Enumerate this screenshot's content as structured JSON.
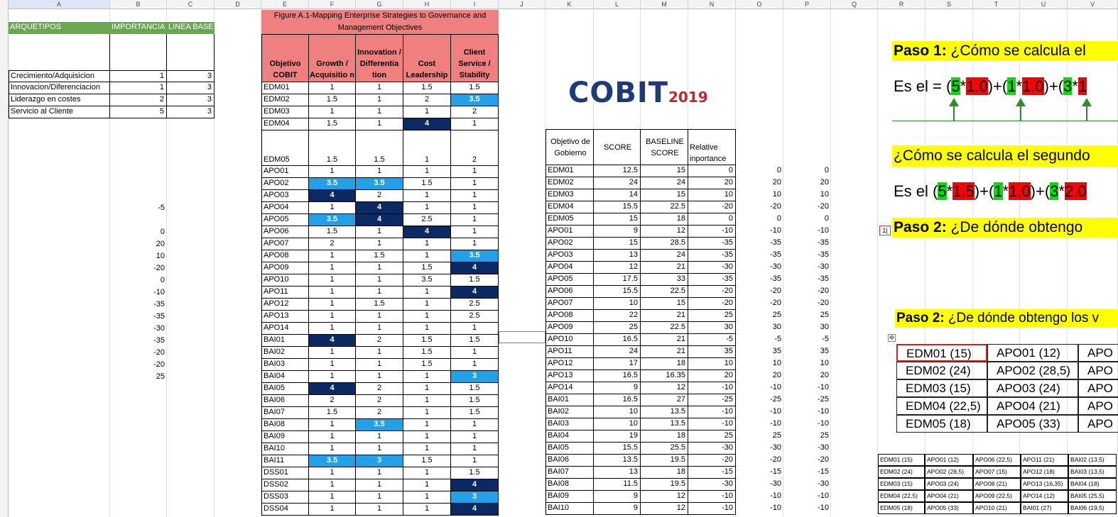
{
  "columns": [
    "A",
    "B",
    "C",
    "D",
    "E",
    "F",
    "G",
    "H",
    "I",
    "J",
    "K",
    "L",
    "M",
    "N",
    "O",
    "P",
    "Q",
    "R",
    "S",
    "T",
    "U",
    "V"
  ],
  "col1": {
    "header": "ARQUETIPOS",
    "importance_header": "IMPORTANCIA",
    "baseline_header": "LINEA BASE",
    "rows": [
      {
        "name": "Crecimiento/Adquisicion",
        "imp": "1",
        "base": "3"
      },
      {
        "name": "Innovacion/Diferenciacion",
        "imp": "1",
        "base": "3"
      },
      {
        "name": "Liderazgo en costes",
        "imp": "2",
        "base": "3"
      },
      {
        "name": "Servicio al Cliente",
        "imp": "5",
        "base": "3"
      }
    ],
    "b_column_values": [
      "-5",
      "",
      "0",
      "20",
      "10",
      "-20",
      "0",
      "-10",
      "-35",
      "-35",
      "-30",
      "-35",
      "-20",
      "-20",
      "25"
    ]
  },
  "figure": {
    "title": "Figure A.1-Mapping Enterprise Strategies to Governance and Management Objectives",
    "h_obj": "Objetivo COBIT",
    "h_growth": "Growth / Acquisitio n",
    "h_innov": "Innovation / Differentia tion",
    "h_cost": "Cost Leadership",
    "h_client": "Client Service / Stability",
    "rows": [
      [
        "EDM01",
        "1",
        "1",
        "1.5",
        "1.5"
      ],
      [
        "EDM02",
        "1.5",
        "1",
        "2",
        "3.5"
      ],
      [
        "EDM03",
        "1",
        "1",
        "1",
        "2"
      ],
      [
        "EDM04",
        "1.5",
        "1",
        "4",
        "1"
      ],
      [
        "EDM05",
        "1.5",
        "1.5",
        "1",
        "2"
      ],
      [
        "APO01",
        "1",
        "1",
        "1",
        "1"
      ],
      [
        "APO02",
        "3.5",
        "3.5",
        "1.5",
        "1"
      ],
      [
        "APO03",
        "4",
        "2",
        "1",
        "1"
      ],
      [
        "APO04",
        "1",
        "4",
        "1",
        "1"
      ],
      [
        "APO05",
        "3.5",
        "4",
        "2.5",
        "1"
      ],
      [
        "APO06",
        "1.5",
        "1",
        "4",
        "1"
      ],
      [
        "APO07",
        "2",
        "1",
        "1",
        "1"
      ],
      [
        "APO08",
        "1",
        "1.5",
        "1",
        "3.5"
      ],
      [
        "APO09",
        "1",
        "1",
        "1.5",
        "4"
      ],
      [
        "APO10",
        "1",
        "1",
        "3.5",
        "1.5"
      ],
      [
        "APO11",
        "1",
        "1",
        "1",
        "4"
      ],
      [
        "APO12",
        "1",
        "1.5",
        "1",
        "2.5"
      ],
      [
        "APO13",
        "1",
        "1",
        "1",
        "2.5"
      ],
      [
        "APO14",
        "1",
        "1",
        "1",
        "1"
      ],
      [
        "BAI01",
        "4",
        "2",
        "1.5",
        "1.5"
      ],
      [
        "BAI02",
        "1",
        "1",
        "1.5",
        "1"
      ],
      [
        "BAI03",
        "1",
        "1",
        "1.5",
        "1"
      ],
      [
        "BAI04",
        "1",
        "1",
        "1",
        "3"
      ],
      [
        "BAI05",
        "4",
        "2",
        "1",
        "1.5"
      ],
      [
        "BAI06",
        "2",
        "2",
        "1",
        "1.5"
      ],
      [
        "BAI07",
        "1.5",
        "2",
        "1",
        "1.5"
      ],
      [
        "BAI08",
        "1",
        "3.5",
        "1",
        "1"
      ],
      [
        "BAI09",
        "1",
        "1",
        "1",
        "1"
      ],
      [
        "BAI10",
        "1",
        "1",
        "1",
        "1"
      ],
      [
        "BAI11",
        "3.5",
        "3",
        "1.5",
        "1"
      ],
      [
        "DSS01",
        "1",
        "1",
        "1",
        "1.5"
      ],
      [
        "DSS02",
        "1",
        "1",
        "1",
        "4"
      ],
      [
        "DSS03",
        "1",
        "1",
        "1",
        "3"
      ],
      [
        "DSS04",
        "1",
        "1",
        "1",
        "4"
      ]
    ],
    "highlights": {
      "EDM02": {
        "4": "light"
      },
      "EDM04": {
        "3": "dark"
      },
      "APO02": {
        "1": "light",
        "2": "light"
      },
      "APO03": {
        "1": "dark"
      },
      "APO04": {
        "2": "dark"
      },
      "APO05": {
        "1": "light",
        "2": "dark"
      },
      "APO06": {
        "3": "dark"
      },
      "APO08": {
        "4": "light"
      },
      "APO09": {
        "4": "dark"
      },
      "APO11": {
        "4": "dark"
      },
      "BAI01": {
        "1": "dark"
      },
      "BAI04": {
        "4": "light"
      },
      "BAI05": {
        "1": "dark"
      },
      "BAI08": {
        "2": "light"
      },
      "BAI11": {
        "1": "light",
        "2": "light"
      },
      "DSS02": {
        "4": "dark"
      },
      "DSS03": {
        "4": "light"
      },
      "DSS04": {
        "4": "dark"
      }
    }
  },
  "logo": {
    "text": "COBIT",
    "year": "2019"
  },
  "score": {
    "h_obj": "Objetivo de Gobierno",
    "h_score": "SCORE",
    "h_base": "BASELINE SCORE",
    "h_rel": "Relative inportance",
    "rows": [
      [
        "EDM01",
        "12.5",
        "15",
        "0",
        "0",
        "0"
      ],
      [
        "EDM02",
        "24",
        "24",
        "20",
        "20",
        "20"
      ],
      [
        "EDM03",
        "14",
        "15",
        "10",
        "10",
        "10"
      ],
      [
        "EDM04",
        "15.5",
        "22.5",
        "-20",
        "-20",
        "-20"
      ],
      [
        "EDM05",
        "15",
        "18",
        "0",
        "0",
        "0"
      ],
      [
        "APO01",
        "9",
        "12",
        "-10",
        "-10",
        "-10"
      ],
      [
        "APO02",
        "15",
        "28.5",
        "-35",
        "-35",
        "-35"
      ],
      [
        "APO03",
        "13",
        "24",
        "-35",
        "-35",
        "-35"
      ],
      [
        "APO04",
        "12",
        "21",
        "-30",
        "-30",
        "-30"
      ],
      [
        "APO05",
        "17.5",
        "33",
        "-35",
        "-35",
        "-35"
      ],
      [
        "APO06",
        "15.5",
        "22.5",
        "-20",
        "-20",
        "-20"
      ],
      [
        "APO07",
        "10",
        "15",
        "-20",
        "-20",
        "-20"
      ],
      [
        "APO08",
        "22",
        "21",
        "25",
        "25",
        "25"
      ],
      [
        "APO09",
        "25",
        "22.5",
        "30",
        "30",
        "30"
      ],
      [
        "APO10",
        "16.5",
        "21",
        "-5",
        "-5",
        "-5"
      ],
      [
        "APO11",
        "24",
        "21",
        "35",
        "35",
        "35"
      ],
      [
        "APO12",
        "17",
        "18",
        "10",
        "10",
        "10"
      ],
      [
        "APO13",
        "16.5",
        "16.35",
        "20",
        "20",
        "20"
      ],
      [
        "APO14",
        "9",
        "12",
        "-10",
        "-10",
        "-10"
      ],
      [
        "BAI01",
        "16.5",
        "27",
        "-25",
        "-25",
        "-25"
      ],
      [
        "BAI02",
        "10",
        "13.5",
        "-10",
        "-10",
        "-10"
      ],
      [
        "BAI03",
        "10",
        "13.5",
        "-10",
        "-10",
        "-10"
      ],
      [
        "BAI04",
        "19",
        "18",
        "25",
        "25",
        "25"
      ],
      [
        "BAI05",
        "15.5",
        "25.5",
        "-30",
        "-30",
        "-30"
      ],
      [
        "BAI06",
        "13.5",
        "19.5",
        "-20",
        "-20",
        "-20"
      ],
      [
        "BAI07",
        "13",
        "18",
        "-15",
        "-15",
        "-15"
      ],
      [
        "BAI08",
        "11.5",
        "19.5",
        "-30",
        "-30",
        "-30"
      ],
      [
        "BAI09",
        "9",
        "12",
        "-10",
        "-10",
        "-10"
      ],
      [
        "BAI10",
        "9",
        "12",
        "-10",
        "-10",
        "-10"
      ]
    ]
  },
  "notes": {
    "paso1_bold": "Paso 1:",
    "paso1_text": " ¿Cómo se calcula el ",
    "eq1_prefix": "Es el = (",
    "eq1_parts": [
      [
        "5",
        "ghl"
      ],
      [
        "*",
        ""
      ],
      [
        "1.0",
        "rhl"
      ],
      [
        ")+(",
        ""
      ],
      [
        "1",
        "ghl"
      ],
      [
        "*",
        ""
      ],
      [
        "1.0",
        "rhl"
      ],
      [
        ")+(",
        ""
      ],
      [
        "3",
        "ghl"
      ],
      [
        "*",
        ""
      ],
      [
        "1",
        "rhl"
      ]
    ],
    "second": "¿Cómo se calcula el segundo",
    "eq2_prefix": "Es el (",
    "eq2_parts": [
      [
        "5",
        "ghl"
      ],
      [
        "*",
        ""
      ],
      [
        "1.5",
        "rhl"
      ],
      [
        ")+(",
        ""
      ],
      [
        "1",
        "ghl"
      ],
      [
        "*",
        ""
      ],
      [
        "1.0",
        "rhl"
      ],
      [
        ")+(",
        ""
      ],
      [
        "3",
        "ghl"
      ],
      [
        "*",
        ""
      ],
      [
        "2.0",
        "rhl"
      ]
    ],
    "paso2_bold": "Paso 2:",
    "paso2_text": " ¿De dónde obtengo ",
    "paso2b_text": " ¿De dónde obtengo los v",
    "small_mark": "1|"
  },
  "big_table": [
    [
      "EDM01 (15)",
      "APO01 (12)",
      "APO"
    ],
    [
      "EDM02 (24)",
      "APO02 (28,5)",
      "APO"
    ],
    [
      "EDM03 (15)",
      "APO03 (24)",
      "APO"
    ],
    [
      "EDM04 (22,5)",
      "APO04 (21)",
      "APO"
    ],
    [
      "EDM05 (18)",
      "APO05 (33)",
      "APO"
    ]
  ],
  "small_table": [
    [
      "EDM01 (15)",
      "APO01 (12)",
      "APO06 (22,5)",
      "APO11 (21)",
      "BAI02 (13,5)"
    ],
    [
      "EDM02 (24)",
      "APO02 (28,5)",
      "APO07 (15)",
      "APO12 (18)",
      "BAI03 (13,5)"
    ],
    [
      "EDM03 (15)",
      "APO03 (24)",
      "APO08 (21)",
      "APO13 (16,35)",
      "BAI04 (18)"
    ],
    [
      "EDM04 (22,5)",
      "APO04 (21)",
      "APO09 (22,5)",
      "APO14 (12)",
      "BAI05 (25,5)"
    ],
    [
      "EDM05 (18)",
      "APO05 (33)",
      "APO10 (21)",
      "BAI01 (27)",
      "BAI06 (19,5)"
    ]
  ]
}
